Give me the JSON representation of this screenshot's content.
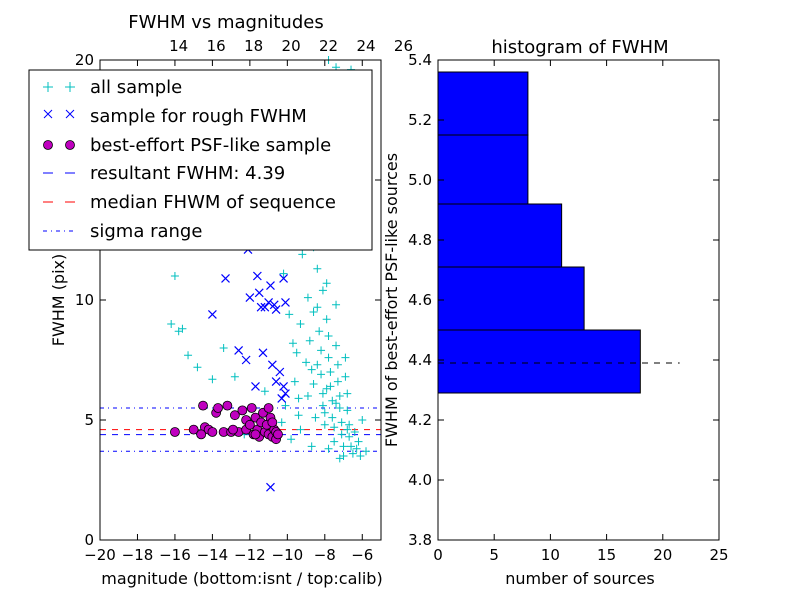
{
  "chart_data": [
    {
      "type": "scatter",
      "title": "FWHM vs magnitudes",
      "xlabel": "magnitude (bottom:isnt / top:calib)",
      "ylabel": "FWHM (pix)",
      "xlim": [
        -20,
        -5
      ],
      "ylim": [
        0,
        20
      ],
      "x_ticks": [
        "−20",
        "−18",
        "−16",
        "−14",
        "−12",
        "−10",
        "−8",
        "−6"
      ],
      "y_ticks": [
        "0",
        "5",
        "10",
        "15",
        "20"
      ],
      "top_axis": {
        "offset": 29.8,
        "ticks": [
          "14",
          "16",
          "18",
          "20",
          "22",
          "24",
          "26"
        ]
      },
      "series": [
        {
          "name": "all sample",
          "marker": "+",
          "color": "#00bfbf",
          "points": [
            [
              -16.2,
              9.0
            ],
            [
              -16.0,
              11.0
            ],
            [
              -15.8,
              8.7
            ],
            [
              -15.6,
              8.8
            ],
            [
              -15.3,
              7.7
            ],
            [
              -14.8,
              7.2
            ],
            [
              -14.0,
              6.7
            ],
            [
              -13.4,
              8.0
            ],
            [
              -12.8,
              6.8
            ],
            [
              -12.2,
              12.5
            ],
            [
              -16.0,
              4.5
            ],
            [
              -14.5,
              4.6
            ],
            [
              -12.3,
              4.4
            ],
            [
              -11.2,
              6.2
            ],
            [
              -10.9,
              14.3
            ],
            [
              -10.5,
              12.6
            ],
            [
              -10.2,
              11.1
            ],
            [
              -9.9,
              9.4
            ],
            [
              -9.7,
              8.2
            ],
            [
              -9.6,
              6.6
            ],
            [
              -9.4,
              5.2
            ],
            [
              -9.3,
              4.6
            ],
            [
              -9.2,
              11.9
            ],
            [
              -9.0,
              12.8
            ],
            [
              -8.9,
              10.1
            ],
            [
              -8.8,
              8.3
            ],
            [
              -8.7,
              7.1
            ],
            [
              -8.6,
              6.5
            ],
            [
              -8.5,
              5.1
            ],
            [
              -8.4,
              11.3
            ],
            [
              -8.4,
              9.7
            ],
            [
              -8.3,
              8.7
            ],
            [
              -8.2,
              7.9
            ],
            [
              -8.2,
              6.9
            ],
            [
              -8.1,
              6.1
            ],
            [
              -8.0,
              5.3
            ],
            [
              -8.0,
              4.8
            ],
            [
              -7.9,
              10.7
            ],
            [
              -7.9,
              9.2
            ],
            [
              -7.8,
              8.5
            ],
            [
              -7.8,
              7.6
            ],
            [
              -7.7,
              7.0
            ],
            [
              -7.7,
              6.4
            ],
            [
              -7.6,
              5.8
            ],
            [
              -7.6,
              5.1
            ],
            [
              -7.5,
              4.7
            ],
            [
              -7.5,
              4.1
            ],
            [
              -7.4,
              9.8
            ],
            [
              -7.4,
              8.1
            ],
            [
              -7.3,
              7.3
            ],
            [
              -7.3,
              6.6
            ],
            [
              -7.2,
              6.0
            ],
            [
              -7.2,
              5.5
            ],
            [
              -7.1,
              4.9
            ],
            [
              -7.1,
              4.4
            ],
            [
              -7.0,
              3.9
            ],
            [
              -7.0,
              3.5
            ],
            [
              -6.9,
              7.6
            ],
            [
              -6.9,
              6.8
            ],
            [
              -6.8,
              6.1
            ],
            [
              -6.8,
              5.4
            ],
            [
              -6.7,
              4.8
            ],
            [
              -6.7,
              4.3
            ],
            [
              -6.6,
              3.9
            ],
            [
              -6.5,
              3.6
            ],
            [
              -6.4,
              4.5
            ],
            [
              -6.3,
              3.8
            ],
            [
              -6.2,
              4.1
            ],
            [
              -6.0,
              5.0
            ],
            [
              -5.8,
              3.7
            ],
            [
              -8.6,
              12.2
            ],
            [
              -8.3,
              13.6
            ],
            [
              -8.0,
              14.9
            ],
            [
              -8.5,
              15.8
            ],
            [
              -7.8,
              16.4
            ],
            [
              -8.8,
              15.1
            ],
            [
              -9.1,
              14.2
            ],
            [
              -7.6,
              12.9
            ],
            [
              -8.1,
              10.4
            ],
            [
              -8.6,
              9.5
            ],
            [
              -9.3,
              9.0
            ],
            [
              -9.5,
              7.8
            ],
            [
              -9.0,
              7.4
            ],
            [
              -8.4,
              7.3
            ],
            [
              -7.9,
              6.3
            ],
            [
              -8.9,
              6.0
            ],
            [
              -9.4,
              5.9
            ],
            [
              -8.1,
              5.6
            ],
            [
              -7.4,
              5.7
            ],
            [
              -6.8,
              4.6
            ],
            [
              -7.8,
              20.0
            ],
            [
              -7.4,
              19.7
            ],
            [
              -6.6,
              19.6
            ],
            [
              -10.1,
              5.6
            ],
            [
              -10.3,
              4.9
            ],
            [
              -9.8,
              4.2
            ],
            [
              -8.7,
              3.9
            ],
            [
              -7.8,
              3.8
            ],
            [
              -7.2,
              3.4
            ],
            [
              -6.1,
              3.5
            ]
          ]
        },
        {
          "name": "sample for rough FWHM",
          "marker": "x",
          "color": "#0000ff",
          "points": [
            [
              -14.0,
              9.4
            ],
            [
              -12.1,
              12.1
            ],
            [
              -11.5,
              10.3
            ],
            [
              -11.2,
              9.7
            ],
            [
              -11.6,
              11.0
            ],
            [
              -10.9,
              10.6
            ],
            [
              -10.7,
              9.8
            ],
            [
              -11.0,
              9.9
            ],
            [
              -10.6,
              9.6
            ],
            [
              -11.4,
              9.7
            ],
            [
              -10.2,
              10.9
            ],
            [
              -10.1,
              9.9
            ],
            [
              -12.2,
              7.5
            ],
            [
              -11.3,
              7.8
            ],
            [
              -10.8,
              7.3
            ],
            [
              -10.4,
              7.0
            ],
            [
              -10.6,
              6.6
            ],
            [
              -10.2,
              6.4
            ],
            [
              -10.1,
              6.1
            ],
            [
              -10.3,
              5.9
            ],
            [
              -11.7,
              6.4
            ],
            [
              -12.6,
              7.9
            ],
            [
              -10.9,
              2.2
            ],
            [
              -13.3,
              10.9
            ],
            [
              -12.0,
              10.1
            ]
          ]
        },
        {
          "name": "best-effort PSF-like sample",
          "marker": "o",
          "color": "#bf00bf",
          "points": [
            [
              -16.0,
              4.5
            ],
            [
              -15.0,
              4.6
            ],
            [
              -14.5,
              5.6
            ],
            [
              -14.4,
              4.7
            ],
            [
              -14.2,
              4.6
            ],
            [
              -14.0,
              4.5
            ],
            [
              -13.8,
              5.3
            ],
            [
              -13.7,
              5.5
            ],
            [
              -13.4,
              4.5
            ],
            [
              -13.2,
              5.6
            ],
            [
              -13.0,
              4.5
            ],
            [
              -12.8,
              5.2
            ],
            [
              -12.6,
              4.5
            ],
            [
              -12.4,
              5.4
            ],
            [
              -12.2,
              4.6
            ],
            [
              -12.2,
              5.0
            ],
            [
              -12.0,
              4.8
            ],
            [
              -11.9,
              5.5
            ],
            [
              -11.8,
              4.4
            ],
            [
              -11.7,
              5.1
            ],
            [
              -11.6,
              4.6
            ],
            [
              -11.5,
              4.3
            ],
            [
              -11.4,
              4.9
            ],
            [
              -11.3,
              5.3
            ],
            [
              -11.2,
              4.5
            ],
            [
              -11.1,
              4.8
            ],
            [
              -11.0,
              4.4
            ],
            [
              -10.9,
              5.1
            ],
            [
              -10.8,
              4.3
            ],
            [
              -10.7,
              4.6
            ],
            [
              -10.6,
              4.2
            ],
            [
              -10.6,
              4.5
            ],
            [
              -10.5,
              4.4
            ],
            [
              -14.6,
              4.4
            ],
            [
              -12.9,
              4.6
            ],
            [
              -11.7,
              4.4
            ],
            [
              -11.0,
              5.5
            ],
            [
              -10.8,
              4.9
            ]
          ]
        }
      ],
      "lines": [
        {
          "name": "resultant FWHM: 4.39",
          "y": 4.39,
          "color": "#0000ff",
          "style": "dashed"
        },
        {
          "name": "median FHWM of sequence",
          "y": 4.6,
          "color": "#ff0000",
          "style": "dashed"
        },
        {
          "name": "sigma range",
          "y": 5.5,
          "color": "#0000ff",
          "style": "dashdot"
        },
        {
          "name": "sigma range",
          "y": 3.7,
          "color": "#0000ff",
          "style": "dashdot"
        }
      ],
      "legend": "upper-left",
      "grid": false
    },
    {
      "type": "bar",
      "orientation": "horizontal",
      "title": "histogram of FWHM",
      "xlabel": "number of sources",
      "ylabel": "FWHM of best-effort PSF-like sources",
      "xlim": [
        0,
        25
      ],
      "ylim": [
        3.8,
        5.4
      ],
      "x_ticks": [
        "0",
        "5",
        "10",
        "15",
        "20",
        "25"
      ],
      "y_ticks": [
        "3.8",
        "4.0",
        "4.2",
        "4.4",
        "4.6",
        "4.8",
        "5.0",
        "5.2",
        "5.4"
      ],
      "bins": [
        {
          "from": 4.29,
          "to": 4.5,
          "count": 18
        },
        {
          "from": 4.5,
          "to": 4.71,
          "count": 13
        },
        {
          "from": 4.71,
          "to": 4.92,
          "count": 11
        },
        {
          "from": 4.92,
          "to": 5.15,
          "count": 8
        },
        {
          "from": 5.15,
          "to": 5.36,
          "count": 8
        }
      ],
      "bar_color": "#0000ff",
      "reference_line": {
        "y": 4.39,
        "x_to": 21.5,
        "color": "#000000",
        "style": "dashed"
      },
      "grid": false
    }
  ]
}
